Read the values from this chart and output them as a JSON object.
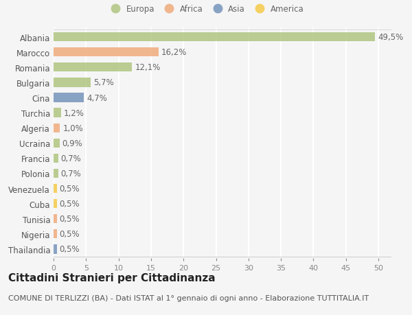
{
  "countries": [
    "Albania",
    "Marocco",
    "Romania",
    "Bulgaria",
    "Cina",
    "Turchia",
    "Algeria",
    "Ucraina",
    "Francia",
    "Polonia",
    "Venezuela",
    "Cuba",
    "Tunisia",
    "Nigeria",
    "Thailandia"
  ],
  "values": [
    49.5,
    16.2,
    12.1,
    5.7,
    4.7,
    1.2,
    1.0,
    0.9,
    0.7,
    0.7,
    0.5,
    0.5,
    0.5,
    0.5,
    0.5
  ],
  "labels": [
    "49,5%",
    "16,2%",
    "12,1%",
    "5,7%",
    "4,7%",
    "1,2%",
    "1,0%",
    "0,9%",
    "0,7%",
    "0,7%",
    "0,5%",
    "0,5%",
    "0,5%",
    "0,5%",
    "0,5%"
  ],
  "colors": [
    "#adc47c",
    "#f0a878",
    "#adc47c",
    "#adc47c",
    "#7090b8",
    "#adc47c",
    "#f0a878",
    "#adc47c",
    "#adc47c",
    "#adc47c",
    "#f5c842",
    "#f5c842",
    "#f0a878",
    "#f0a878",
    "#7090b8"
  ],
  "legend_labels": [
    "Europa",
    "Africa",
    "Asia",
    "America"
  ],
  "legend_colors": [
    "#adc47c",
    "#f0a878",
    "#7090b8",
    "#f5c842"
  ],
  "xlim": [
    0,
    52
  ],
  "xticks": [
    0,
    5,
    10,
    15,
    20,
    25,
    30,
    35,
    40,
    45,
    50
  ],
  "title": "Cittadini Stranieri per Cittadinanza",
  "subtitle": "COMUNE DI TERLIZZI (BA) - Dati ISTAT al 1° gennaio di ogni anno - Elaborazione TUTTITALIA.IT",
  "background_color": "#f5f5f5",
  "bar_height": 0.6,
  "grid_color": "#ffffff",
  "label_fontsize": 8.5,
  "tick_fontsize": 8,
  "title_fontsize": 11,
  "subtitle_fontsize": 8
}
